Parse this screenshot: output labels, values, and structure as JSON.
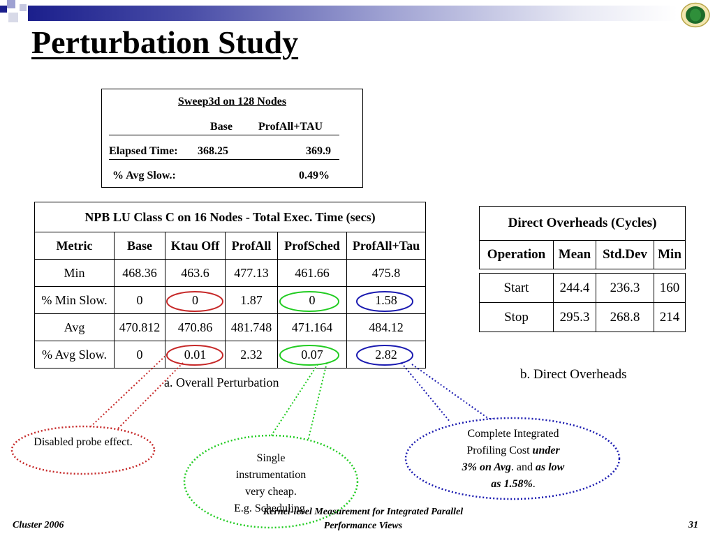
{
  "slide": {
    "title": "Perturbation Study",
    "accent_colors": {
      "bar_dark": "#1b1f8c",
      "red": "#c62828",
      "green": "#22cc22",
      "blue": "#1a1ab0"
    }
  },
  "sweep": {
    "title": "Sweep3d on 128 Nodes",
    "col_base": "Base",
    "col_profall": "ProfAll+TAU",
    "row1_label": "Elapsed Time:",
    "row1_base": "368.25",
    "row1_profall": "369.9",
    "row2_label": "% Avg Slow.:",
    "row2_profall": "0.49%"
  },
  "npb": {
    "caption": "NPB LU Class C on 16 Nodes - Total Exec. Time (secs)",
    "headers": [
      "Metric",
      "Base",
      "Ktau Off",
      "ProfAll",
      "ProfSched",
      "ProfAll+Tau"
    ],
    "rows": [
      [
        "Min",
        "468.36",
        "463.6",
        "477.13",
        "461.66",
        "475.8"
      ],
      [
        "% Min Slow.",
        "0",
        "0",
        "1.87",
        "0",
        "1.58"
      ],
      [
        "Avg",
        "470.812",
        "470.86",
        "481.748",
        "471.164",
        "484.12"
      ],
      [
        "% Avg Slow.",
        "0",
        "0.01",
        "2.32",
        "0.07",
        "2.82"
      ]
    ],
    "figure_caption": "a. Overall Perturbation"
  },
  "direct": {
    "caption": "Direct Overheads (Cycles)",
    "headers": [
      "Operation",
      "Mean",
      "Std.Dev",
      "Min"
    ],
    "rows": [
      [
        "Start",
        "244.4",
        "236.3",
        "160"
      ],
      [
        "Stop",
        "295.3",
        "268.8",
        "214"
      ]
    ],
    "figure_caption": "b. Direct Overheads"
  },
  "callouts": {
    "probe": "Disabled probe effect.",
    "single_l1": "Single",
    "single_l2": "instrumentation",
    "single_l3": "very cheap.",
    "single_l4": "E.g. Scheduling.",
    "complete_l1": "Complete Integrated",
    "complete_l2a": "Profiling Cost ",
    "complete_l2b": "under",
    "complete_l3a": "3% on Avg",
    "complete_l3b": ". and ",
    "complete_l3c": "as low",
    "complete_l4a": "as 1.58%",
    "complete_l4b": "."
  },
  "footer": {
    "left": "Cluster 2006",
    "center_l1": "Kernel-level Measurement for Integrated Parallel",
    "center_l2": "Performance Views",
    "page": "31"
  }
}
